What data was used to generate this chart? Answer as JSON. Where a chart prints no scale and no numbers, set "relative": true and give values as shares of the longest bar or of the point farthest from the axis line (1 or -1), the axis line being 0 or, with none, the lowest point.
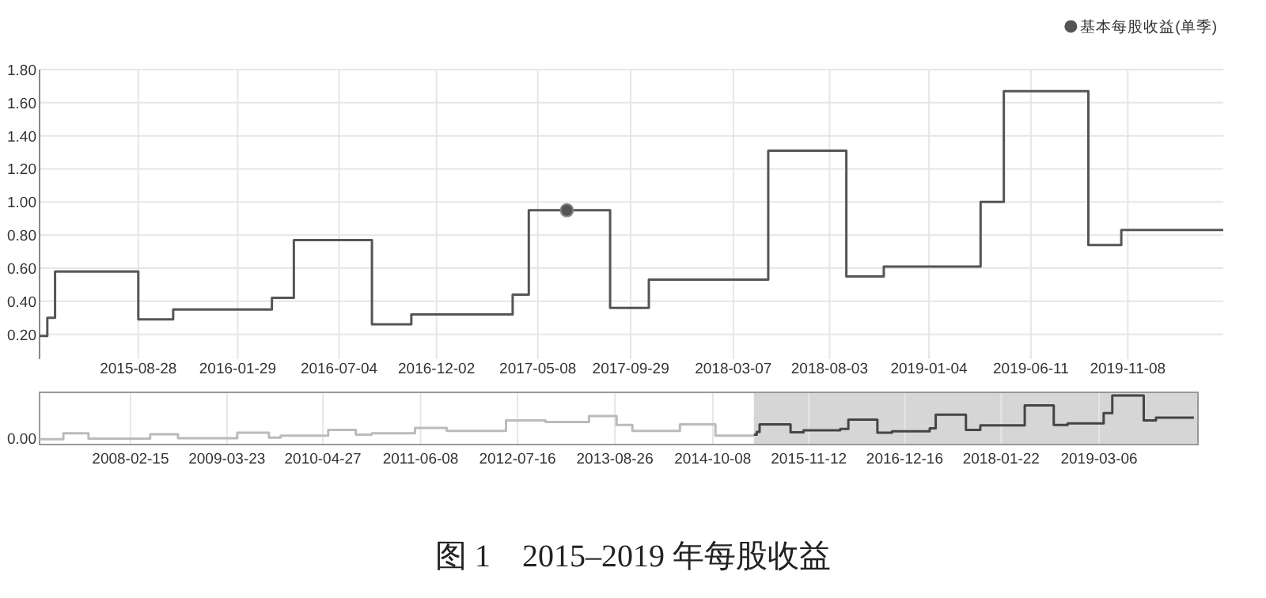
{
  "chart_data": [
    {
      "type": "step",
      "legend": "top right",
      "grid": true,
      "line_style": "solid",
      "marker": "none",
      "xlim": [
        "2015-03-28",
        "2020-04-04"
      ],
      "xticks": [
        "2015-08-28",
        "2016-01-29",
        "2016-07-04",
        "2016-12-02",
        "2017-05-08",
        "2017-09-29",
        "2018-03-07",
        "2018-08-03",
        "2019-01-04",
        "2019-06-11",
        "2019-11-08"
      ],
      "ylim": [
        0.05,
        1.8
      ],
      "yticks": [
        {
          "value": 0.2,
          "label": "0.20"
        },
        {
          "value": 0.4,
          "label": "0.40"
        },
        {
          "value": 0.6,
          "label": "0.60"
        },
        {
          "value": 0.8,
          "label": "0.80"
        },
        {
          "value": 1.0,
          "label": "1.00"
        },
        {
          "value": 1.2,
          "label": "1.20"
        },
        {
          "value": 1.4,
          "label": "1.40"
        },
        {
          "value": 1.6,
          "label": "1.60"
        },
        {
          "value": 1.8,
          "label": "1.80"
        }
      ],
      "series": [
        {
          "name": "基本每股收益(单季)",
          "color": "#555555",
          "x": [
            "2015-03-28",
            "2015-04-09",
            "2015-04-21",
            "2015-08-28",
            "2015-10-21",
            "2016-03-22",
            "2016-04-25",
            "2016-08-24",
            "2016-10-24",
            "2017-03-30",
            "2017-04-24",
            "2017-08-28",
            "2017-10-27",
            "2018-04-30",
            "2018-08-29",
            "2018-10-26",
            "2019-03-25",
            "2019-04-30",
            "2019-09-08",
            "2019-10-29",
            "2020-04-04"
          ],
          "values": [
            0.19,
            0.3,
            0.58,
            0.29,
            0.35,
            0.42,
            0.77,
            0.26,
            0.32,
            0.44,
            0.95,
            0.36,
            0.53,
            1.31,
            0.55,
            0.61,
            1.0,
            1.67,
            0.74,
            0.83,
            0.83
          ]
        },
        {
          "type": "scatter",
          "marker": "circle",
          "color": "#555555",
          "x": [
            "2017-06-22"
          ],
          "values": [
            0.95
          ]
        }
      ],
      "annotations": [
        "图 1　2015–2019 年每股收益"
      ]
    },
    {
      "type": "step",
      "relative": true,
      "grid": "x",
      "line_style": "solid",
      "xlim": [
        "2007-02-01",
        "2020-04-21"
      ],
      "xticks": [
        "2008-02-15",
        "2009-03-23",
        "2010-04-27",
        "2011-06-08",
        "2012-07-16",
        "2013-08-26",
        "2014-10-08",
        "2015-11-12",
        "2016-12-16",
        "2018-01-22",
        "2019-03-06"
      ],
      "bands": [
        {
          "axis": "x",
          "from": "2015-03-28",
          "to": "2020-04-21",
          "color": "#d6d6d6"
        }
      ],
      "series": [
        {
          "color": "#bbbbbb",
          "x": [
            "2007-02-01",
            "2007-05-11",
            "2007-08-24",
            "2008-05-07",
            "2008-08-31",
            "2009-05-05",
            "2009-09-14",
            "2009-11-02",
            "2010-05-19",
            "2010-09-11",
            "2010-11-16",
            "2011-05-16",
            "2011-09-25",
            "2012-05-29",
            "2012-11-10",
            "2013-05-10",
            "2013-09-02",
            "2013-11-07",
            "2014-05-24",
            "2014-10-19",
            "2015-03-28"
          ],
          "values": [
            0.11,
            0.23,
            0.12,
            0.21,
            0.13,
            0.24,
            0.14,
            0.18,
            0.3,
            0.2,
            0.23,
            0.34,
            0.28,
            0.49,
            0.46,
            0.58,
            0.4,
            0.28,
            0.41,
            0.18,
            0.18
          ]
        },
        {
          "color": "#444444",
          "x": [
            "2015-03-28",
            "2015-04-09",
            "2015-04-21",
            "2015-08-28",
            "2015-10-21",
            "2016-03-22",
            "2016-04-25",
            "2016-08-24",
            "2016-10-24",
            "2017-03-30",
            "2017-04-24",
            "2017-08-28",
            "2017-10-27",
            "2018-04-30",
            "2018-08-29",
            "2018-10-26",
            "2019-03-25",
            "2019-04-30",
            "2019-09-08",
            "2019-10-29",
            "2020-04-04"
          ],
          "values": [
            0.2,
            0.26,
            0.41,
            0.25,
            0.29,
            0.32,
            0.51,
            0.24,
            0.27,
            0.33,
            0.61,
            0.3,
            0.39,
            0.8,
            0.4,
            0.43,
            0.64,
            1.0,
            0.49,
            0.55,
            0.55
          ]
        }
      ],
      "annotations": [
        "0.00"
      ]
    }
  ]
}
